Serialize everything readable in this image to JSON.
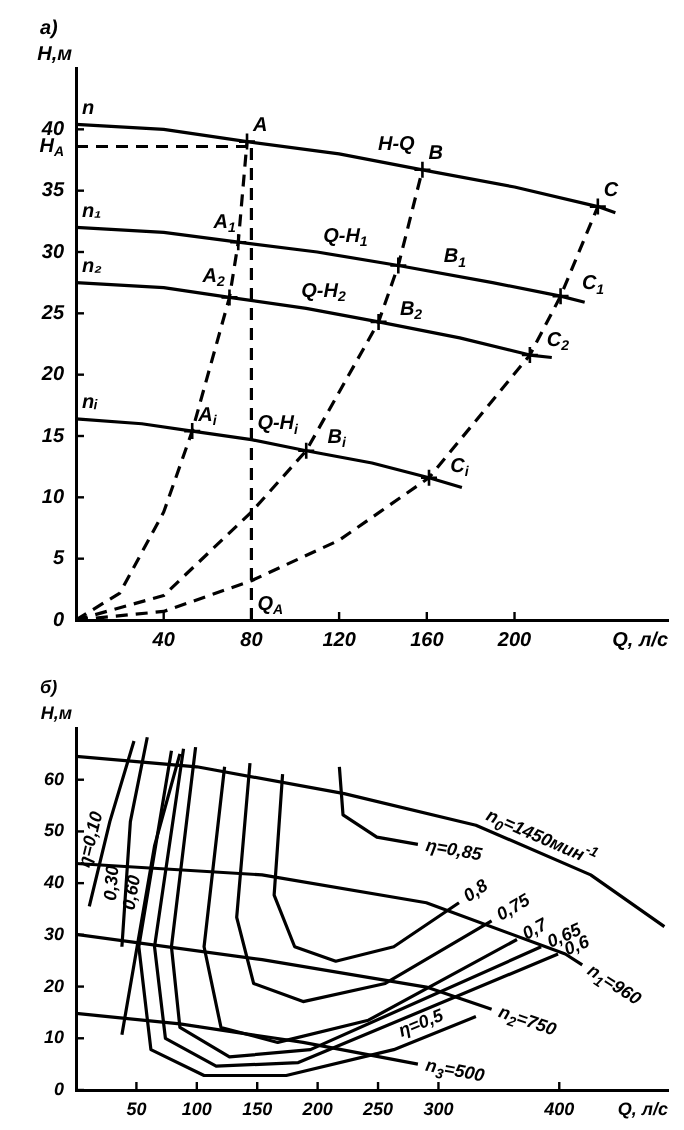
{
  "chart_data": [
    {
      "type": "line",
      "title": "а)",
      "xlabel": "Q, л/с",
      "ylabel": "H,м",
      "xlim": [
        0,
        270
      ],
      "xticks": [
        40,
        80,
        120,
        160,
        200
      ],
      "ylim": [
        0,
        45
      ],
      "yticks": [
        0,
        5,
        10,
        15,
        20,
        25,
        30,
        35,
        40,
        {
          "value": 38.6,
          "label": "H$_{A}$"
        }
      ],
      "marker": "none",
      "series": [
        {
          "color": "#000000",
          "x": [
            0,
            40,
            78,
            120,
            158,
            200,
            238,
            246
          ],
          "values": [
            40.4,
            40.0,
            39.0,
            38.0,
            36.7,
            35.3,
            33.7,
            33.2
          ]
        },
        {
          "color": "#000000",
          "x": [
            0,
            40,
            74,
            110,
            147,
            190,
            221,
            232
          ],
          "values": [
            32.0,
            31.6,
            30.8,
            30.0,
            28.9,
            27.5,
            26.4,
            25.9
          ]
        },
        {
          "color": "#000000",
          "x": [
            0,
            40,
            70,
            105,
            138,
            175,
            207,
            217
          ],
          "values": [
            27.5,
            27.1,
            26.3,
            25.4,
            24.3,
            23.0,
            21.6,
            21.4
          ]
        },
        {
          "color": "#000000",
          "x": [
            0,
            30,
            53,
            80,
            105,
            135,
            161,
            176
          ],
          "values": [
            16.4,
            16.0,
            15.4,
            14.7,
            13.8,
            12.8,
            11.6,
            10.8
          ]
        },
        {
          "color": "#000000",
          "line_style": "dashed",
          "x": [
            0,
            20,
            40,
            53,
            70,
            74,
            78
          ],
          "values": [
            0,
            2.2,
            8.8,
            15.4,
            26.3,
            30.8,
            39.0
          ]
        },
        {
          "color": "#000000",
          "line_style": "dashed",
          "x": [
            0,
            40,
            80,
            105,
            138,
            147,
            158
          ],
          "values": [
            0,
            2.0,
            8.8,
            13.8,
            24.3,
            28.9,
            36.7
          ]
        },
        {
          "color": "#000000",
          "line_style": "dashed",
          "x": [
            0,
            40,
            80,
            120,
            161,
            207,
            221,
            238
          ],
          "values": [
            0,
            0.7,
            3.2,
            6.5,
            11.6,
            21.6,
            26.4,
            33.7
          ]
        },
        {
          "color": "#000000",
          "line_style": "dashed",
          "x": [
            0,
            78
          ],
          "values": [
            38.6,
            38.6
          ]
        },
        {
          "color": "#000000",
          "line_style": "dashed",
          "x": [
            80,
            80
          ],
          "values": [
            0,
            38.6
          ]
        },
        {
          "type": "scatter",
          "color": "#000000",
          "marker": "cross",
          "x": [
            78,
            158,
            238,
            74,
            147,
            221,
            70,
            138,
            207,
            53,
            105,
            161
          ],
          "values": [
            39.0,
            36.7,
            33.7,
            30.8,
            28.9,
            26.4,
            26.3,
            24.3,
            21.6,
            15.4,
            13.8,
            11.6
          ]
        }
      ],
      "annotations": [
        {
          "text": "n",
          "x": 0,
          "y": 40.4
        },
        {
          "text": "n₁",
          "x": 0,
          "y": 32.0
        },
        {
          "text": "n₂",
          "x": 0,
          "y": 27.5
        },
        {
          "text": "nᵢ",
          "x": 0,
          "y": 16.4
        },
        {
          "text": "A",
          "x": 78,
          "y": 39.0
        },
        {
          "text": "B",
          "x": 158,
          "y": 36.7
        },
        {
          "text": "C",
          "x": 238,
          "y": 33.7
        },
        {
          "text": "A$_{1}$",
          "x": 60,
          "y": 31.1
        },
        {
          "text": "B$_{1}$",
          "x": 165,
          "y": 28.3
        },
        {
          "text": "C$_{1}$",
          "x": 228,
          "y": 26.1
        },
        {
          "text": "A$_{2}$",
          "x": 55,
          "y": 26.7
        },
        {
          "text": "B$_{2}$",
          "x": 145,
          "y": 24.0
        },
        {
          "text": "C$_{2}$",
          "x": 212,
          "y": 21.5
        },
        {
          "text": "A$_{i}$",
          "x": 53,
          "y": 15.4
        },
        {
          "text": "B$_{i}$",
          "x": 112,
          "y": 13.6
        },
        {
          "text": "C$_{i}$",
          "x": 168,
          "y": 11.2
        },
        {
          "text": "H-Q",
          "x": 135,
          "y": 37.5
        },
        {
          "text": "Q-H$_{1}$",
          "x": 110,
          "y": 30.0
        },
        {
          "text": "Q-H$_{2}$",
          "x": 100,
          "y": 25.5
        },
        {
          "text": "Q-H$_{i}$",
          "x": 80,
          "y": 14.7
        },
        {
          "text": "Q$_{A}$",
          "x": 80,
          "y": 0
        }
      ]
    },
    {
      "type": "line",
      "title": "б)",
      "xlabel": "Q, л/с",
      "ylabel": "H,м",
      "xlim": [
        0,
        490
      ],
      "xticks": [
        50,
        100,
        150,
        200,
        250,
        300,
        400
      ],
      "ylim": [
        0,
        70
      ],
      "yticks": [
        0,
        10,
        20,
        30,
        40,
        50,
        60
      ],
      "marker": "none",
      "series": [
        {
          "color": "#000000",
          "x": [
            0,
            100,
            222,
            331,
            426,
            487
          ],
          "values": [
            64.5,
            62.5,
            57.3,
            51.2,
            41.6,
            31.6
          ]
        },
        {
          "color": "#000000",
          "x": [
            0,
            154,
            290,
            405,
            419
          ],
          "values": [
            43.8,
            41.6,
            36.2,
            26.3,
            24.2
          ]
        },
        {
          "color": "#000000",
          "x": [
            0,
            154,
            290,
            344
          ],
          "values": [
            30.1,
            25.2,
            19.9,
            15.6
          ]
        },
        {
          "color": "#000000",
          "x": [
            0,
            86,
            188,
            283
          ],
          "values": [
            14.8,
            12.8,
            9.2,
            5.0
          ]
        },
        {
          "color": "#000000",
          "x": [
            11,
            28,
            48
          ],
          "values": [
            35.5,
            51.9,
            67.5
          ]
        },
        {
          "color": "#000000",
          "x": [
            38,
            45,
            59
          ],
          "values": [
            27.7,
            51.9,
            68.2
          ]
        },
        {
          "color": "#000000",
          "x": [
            38,
            65,
            86
          ],
          "values": [
            10.7,
            47.2,
            65.0
          ]
        },
        {
          "color": "#000000",
          "x": [
            218,
            221,
            249,
            283
          ],
          "values": [
            62.5,
            53.2,
            48.9,
            47.5
          ]
        },
        {
          "color": "#000000",
          "x": [
            171,
            164,
            181,
            215,
            263,
            317
          ],
          "values": [
            61.1,
            37.7,
            27.7,
            24.9,
            27.7,
            36.2
          ]
        },
        {
          "color": "#000000",
          "x": [
            144,
            133,
            147,
            188,
            256,
            344
          ],
          "values": [
            63.2,
            33.4,
            20.6,
            17.1,
            20.6,
            32.7
          ]
        },
        {
          "color": "#000000",
          "x": [
            123,
            106,
            120,
            167,
            242,
            365
          ],
          "values": [
            62.5,
            27.7,
            12.1,
            9.2,
            13.5,
            29.1
          ]
        },
        {
          "color": "#000000",
          "x": [
            99,
            79,
            86,
            127,
            194,
            385
          ],
          "values": [
            66.3,
            27.7,
            12.1,
            6.4,
            7.8,
            27.7
          ]
        },
        {
          "color": "#000000",
          "x": [
            89,
            65,
            74,
            116,
            184,
            399
          ],
          "values": [
            66.0,
            27.7,
            10.0,
            4.6,
            5.3,
            26.3
          ]
        },
        {
          "color": "#000000",
          "x": [
            79,
            52,
            62,
            106,
            174,
            263,
            331
          ],
          "values": [
            65.6,
            27.7,
            7.8,
            2.8,
            2.8,
            7.8,
            14.2
          ]
        }
      ],
      "annotations": [
        {
          "text": "η=0,10",
          "x": 23.75,
          "y": 47.8
        },
        {
          "text": "0,30",
          "x": 41.5,
          "y": 39.8
        },
        {
          "text": "0,60",
          "x": 58,
          "y": 37.7
        },
        {
          "text": "η=0,85",
          "x": 283,
          "y": 47.5
        },
        {
          "text": "0,8",
          "x": 317,
          "y": 36.2
        },
        {
          "text": "0,75",
          "x": 344,
          "y": 32.7
        },
        {
          "text": "0,7",
          "x": 365,
          "y": 29.1
        },
        {
          "text": "0,65",
          "x": 385,
          "y": 27.7
        },
        {
          "text": "0,6",
          "x": 399,
          "y": 26.3
        },
        {
          "text": "η=0,5",
          "x": 290,
          "y": 10.3
        },
        {
          "text": "n$_{0}$=1450мин$^{-1}$",
          "x": 380,
          "y": 46.2
        },
        {
          "text": "n$_{1}$=960",
          "x": 419,
          "y": 24.2
        },
        {
          "text": "n$_{2}$=750",
          "x": 344,
          "y": 15.6
        },
        {
          "text": "n$_{3}$=500",
          "x": 283,
          "y": 5.0
        }
      ]
    }
  ]
}
